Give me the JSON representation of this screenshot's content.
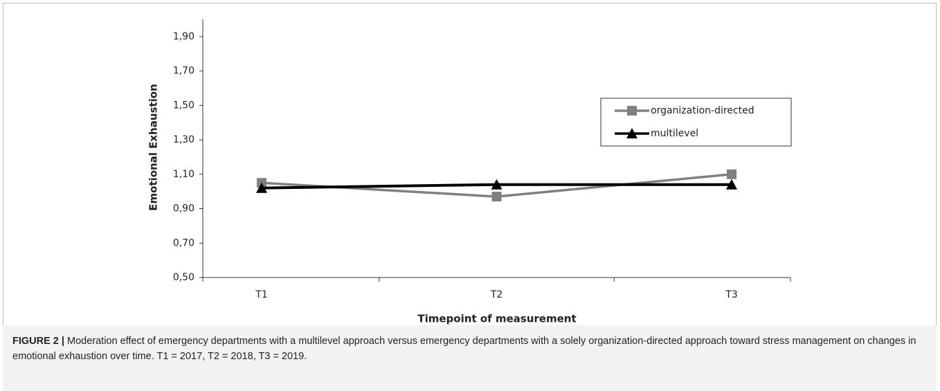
{
  "chart_data": {
    "type": "line",
    "ylabel": "Emotional Exhaustion",
    "xlabel": "Timepoint of measurement",
    "categories": [
      "T1",
      "T2",
      "T3"
    ],
    "series": [
      {
        "name": "organization-directed",
        "color": "#808080",
        "marker": "square",
        "values": [
          1.05,
          0.97,
          1.1
        ]
      },
      {
        "name": "multilevel",
        "color": "#000000",
        "marker": "triangle",
        "values": [
          1.02,
          1.04,
          1.04
        ]
      }
    ],
    "ylim": [
      0.5,
      2.0
    ],
    "yticks": [
      {
        "value": 0.5,
        "label": "0,50"
      },
      {
        "value": 0.7,
        "label": "0,70"
      },
      {
        "value": 0.9,
        "label": "0,90"
      },
      {
        "value": 1.1,
        "label": "1,10"
      },
      {
        "value": 1.3,
        "label": "1,30"
      },
      {
        "value": 1.5,
        "label": "1,50"
      },
      {
        "value": 1.7,
        "label": "1,70"
      },
      {
        "value": 1.9,
        "label": "1,90"
      }
    ],
    "grid": false,
    "legend": "right"
  },
  "caption": {
    "label": "FIGURE 2 |",
    "text": "Moderation effect of emergency departments with a multilevel approach versus emergency departments with a solely organization-directed approach toward stress management on changes in emotional exhaustion over time. T1 = 2017, T2 = 2018, T3 = 2019."
  }
}
